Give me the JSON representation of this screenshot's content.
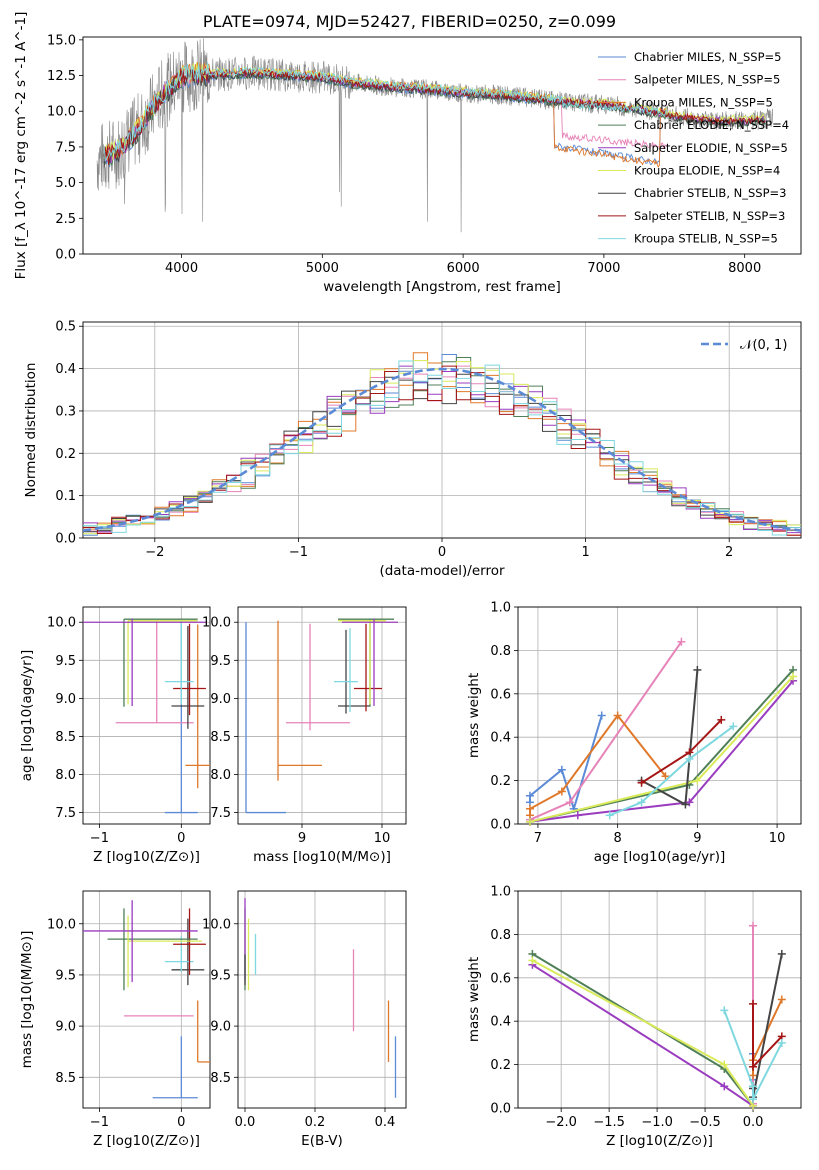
{
  "figure": {
    "title": "PLATE=0974, MJD=52427, FIBERID=0250, z=0.099"
  },
  "colors": {
    "chabrier_miles": "#5b8ad6",
    "salpeter_miles": "#e683b8",
    "kroupa_miles": "#e0782a",
    "chabrier_elodie": "#4f7f57",
    "salpeter_elodie": "#9a3cbf",
    "kroupa_elodie": "#d9ea5a",
    "chabrier_stelib": "#444444",
    "salpeter_stelib": "#a51515",
    "kroupa_stelib": "#7fd8df",
    "data_gray": "#888888",
    "normal_curve": "#5b8ad6"
  },
  "chart_data": [
    {
      "id": "spectrum",
      "type": "line",
      "xlabel": "wavelength [Angstrom, rest frame]",
      "ylabel": "Flux [f_λ 10^-17 erg cm^-2 s^-1 A^-1]",
      "xlim": [
        3300,
        8400
      ],
      "ylim": [
        0,
        15.2
      ],
      "xticks": [
        "4000",
        "5000",
        "6000",
        "7000",
        "8000"
      ],
      "yticks": [
        "0.0",
        "2.5",
        "5.0",
        "7.5",
        "10.0",
        "12.5",
        "15.0"
      ],
      "legend_position": "top-right",
      "legend": [
        "Chabrier MILES, N_SSP=5",
        "Salpeter MILES, N_SSP=5",
        "Kroupa MILES, N_SSP=5",
        "Chabrier ELODIE, N_SSP=4",
        "Salpeter ELODIE, N_SSP=5",
        "Kroupa ELODIE, N_SSP=4",
        "Chabrier STELIB, N_SSP=3",
        "Salpeter STELIB, N_SSP=3",
        "Kroupa STELIB, N_SSP=5"
      ],
      "continuum": {
        "x": [
          3400,
          3550,
          3700,
          3850,
          4000,
          4100,
          4300,
          4500,
          4800,
          5000,
          5200,
          5500,
          5800,
          6000,
          6300,
          6500,
          6600,
          6700,
          6800,
          7000,
          7200,
          7500,
          7700,
          8000,
          8200
        ],
        "y": [
          6.6,
          7.2,
          8.8,
          11.0,
          12.4,
          12.6,
          12.6,
          12.7,
          12.5,
          12.4,
          12.0,
          11.7,
          11.5,
          11.3,
          11.1,
          10.9,
          10.8,
          10.7,
          10.6,
          10.5,
          10.2,
          9.7,
          9.4,
          9.3,
          9.5
        ]
      },
      "model_tails": [
        {
          "series": "Kroupa STELIB",
          "start": 6700,
          "end": 7400,
          "y": [
            10.5,
            10.0
          ]
        },
        {
          "series": "Salpeter MILES",
          "start": 6700,
          "end": 7450,
          "y": [
            8.3,
            7.5
          ]
        },
        {
          "series": "Chabrier MILES",
          "start": 6650,
          "end": 7400,
          "y": [
            7.6,
            6.4
          ]
        },
        {
          "series": "Kroupa MILES",
          "start": 6650,
          "end": 7400,
          "y": [
            7.5,
            6.3
          ]
        }
      ]
    },
    {
      "id": "residuals",
      "type": "histogram",
      "xlabel": "(data-model)/error",
      "ylabel": "Normed distribution",
      "xlim": [
        -2.5,
        2.5
      ],
      "ylim": [
        0,
        0.51
      ],
      "xticks": [
        "−2",
        "−1",
        "0",
        "1",
        "2"
      ],
      "yticks": [
        "0.0",
        "0.1",
        "0.2",
        "0.3",
        "0.4",
        "0.5"
      ],
      "legend_position": "top-right",
      "legend": [
        "𝒩(0, 1)"
      ],
      "bin_width": 0.1,
      "bin_start": -2.5,
      "grid": true
    },
    {
      "id": "z-age",
      "type": "scatter",
      "xlabel": "Z [log10(Z/Z⊙)]",
      "ylabel": "age  [log10(age/yr)]",
      "xlim": [
        -1.2,
        0.35
      ],
      "ylim": [
        7.35,
        10.2
      ],
      "xticks": [
        "−1",
        "0"
      ],
      "yticks": [
        "7.5",
        "8.0",
        "8.5",
        "9.0",
        "9.5",
        "10.0"
      ],
      "points": [
        {
          "series": "Chabrier MILES",
          "x": 0,
          "y": 7.5,
          "xerr": [
            0.2,
            0.2
          ],
          "yerr": [
            0,
            2.5
          ]
        },
        {
          "series": "Kroupa MILES",
          "x": 0.2,
          "y": 8.12,
          "xerr": [
            0.15,
            0.15
          ],
          "yerr": [
            0.3,
            1.85
          ]
        },
        {
          "series": "Salpeter MILES",
          "x": -0.3,
          "y": 8.68,
          "xerr": [
            0.5,
            0.45
          ],
          "yerr": [
            0,
            1.35
          ]
        },
        {
          "series": "Chabrier STELIB",
          "x": 0.08,
          "y": 8.9,
          "xerr": [
            0.2,
            0.2
          ],
          "yerr": [
            0.3,
            1.05
          ]
        },
        {
          "series": "Salpeter STELIB",
          "x": 0.1,
          "y": 9.13,
          "xerr": [
            0.2,
            0.2
          ],
          "yerr": [
            0.35,
            0.85
          ]
        },
        {
          "series": "Kroupa STELIB",
          "x": 0.0,
          "y": 9.22,
          "xerr": [
            0.2,
            0.15
          ],
          "yerr": [
            0.3,
            0.8
          ]
        },
        {
          "series": "Chabrier ELODIE",
          "x": -0.7,
          "y": 10.04,
          "xerr": [
            0.0,
            0.9
          ],
          "yerr": [
            1.15,
            0
          ]
        },
        {
          "series": "Kroupa ELODIE",
          "x": -0.65,
          "y": 10.02,
          "xerr": [
            0.0,
            0.85
          ],
          "yerr": [
            1.1,
            0
          ]
        },
        {
          "series": "Salpeter ELODIE",
          "x": -0.6,
          "y": 10.0,
          "xerr": [
            0.6,
            0.9
          ],
          "yerr": [
            1.1,
            0.05
          ]
        }
      ]
    },
    {
      "id": "mass-age",
      "type": "scatter",
      "xlabel": "mass [log10(M/M⊙)]",
      "ylabel": "",
      "xlim": [
        8.2,
        10.3
      ],
      "ylim": [
        7.35,
        10.2
      ],
      "xticks": [
        "9",
        "10"
      ],
      "yticks": [
        "7.5",
        "8.0",
        "8.5",
        "9.0",
        "9.5",
        "10.0"
      ],
      "points": [
        {
          "series": "Chabrier MILES",
          "x": 8.3,
          "y": 7.5,
          "xerr": [
            0,
            0.5
          ],
          "yerr": [
            0,
            2.5
          ]
        },
        {
          "series": "Kroupa MILES",
          "x": 8.7,
          "y": 8.12,
          "xerr": [
            0,
            0.55
          ],
          "yerr": [
            0.2,
            1.9
          ]
        },
        {
          "series": "Salpeter MILES",
          "x": 9.1,
          "y": 8.68,
          "xerr": [
            0.3,
            0.5
          ],
          "yerr": [
            0.1,
            1.3
          ]
        },
        {
          "series": "Chabrier STELIB",
          "x": 9.55,
          "y": 8.9,
          "xerr": [
            0.1,
            0.3
          ],
          "yerr": [
            0.1,
            1.0
          ]
        },
        {
          "series": "Salpeter STELIB",
          "x": 9.8,
          "y": 9.13,
          "xerr": [
            0.15,
            0.2
          ],
          "yerr": [
            0.3,
            0.85
          ]
        },
        {
          "series": "Kroupa STELIB",
          "x": 9.6,
          "y": 9.22,
          "xerr": [
            0.2,
            0.1
          ],
          "yerr": [
            0.4,
            0.7
          ]
        },
        {
          "series": "Chabrier ELODIE",
          "x": 9.85,
          "y": 10.04,
          "xerr": [
            0.4,
            0.3
          ],
          "yerr": [
            1.15,
            0
          ]
        },
        {
          "series": "Kroupa ELODIE",
          "x": 9.85,
          "y": 10.02,
          "xerr": [
            0.4,
            0.2
          ],
          "yerr": [
            1.1,
            0
          ]
        },
        {
          "series": "Salpeter ELODIE",
          "x": 9.9,
          "y": 10.0,
          "xerr": [
            0.4,
            0.3
          ],
          "yerr": [
            1.1,
            0.05
          ]
        }
      ]
    },
    {
      "id": "age-massweight",
      "type": "line",
      "xlabel": "age  [log10(age/yr)]",
      "ylabel": "mass weight",
      "xlim": [
        6.75,
        10.3
      ],
      "ylim": [
        0,
        1.0
      ],
      "xticks": [
        "7",
        "8",
        "9",
        "10"
      ],
      "yticks": [
        "0.0",
        "0.2",
        "0.4",
        "0.6",
        "0.8",
        "1.0"
      ],
      "grid": true,
      "series": [
        {
          "name": "Chabrier MILES",
          "x": [
            6.9,
            6.9,
            7.3,
            7.45,
            7.8
          ],
          "y": [
            0.1,
            0.13,
            0.25,
            0.07,
            0.5
          ]
        },
        {
          "name": "Salpeter MILES",
          "x": [
            6.9,
            7.4,
            8.8
          ],
          "y": [
            0.02,
            0.1,
            0.84
          ]
        },
        {
          "name": "Kroupa MILES",
          "x": [
            6.9,
            6.9,
            7.3,
            8.0,
            8.6
          ],
          "y": [
            0.04,
            0.07,
            0.15,
            0.5,
            0.22
          ]
        },
        {
          "name": "Chabrier ELODIE",
          "x": [
            6.9,
            8.9,
            10.2
          ],
          "y": [
            0.01,
            0.18,
            0.71
          ]
        },
        {
          "name": "Salpeter ELODIE",
          "x": [
            6.9,
            7.5,
            8.9,
            10.2
          ],
          "y": [
            0.01,
            0.04,
            0.1,
            0.66
          ]
        },
        {
          "name": "Kroupa ELODIE",
          "x": [
            6.9,
            9.0,
            10.2
          ],
          "y": [
            0.01,
            0.2,
            0.68
          ]
        },
        {
          "name": "Chabrier STELIB",
          "x": [
            8.3,
            8.85,
            9.0
          ],
          "y": [
            0.2,
            0.09,
            0.71
          ]
        },
        {
          "name": "Salpeter STELIB",
          "x": [
            8.3,
            8.9,
            9.3
          ],
          "y": [
            0.19,
            0.33,
            0.48
          ]
        },
        {
          "name": "Kroupa STELIB",
          "x": [
            7.9,
            8.3,
            8.9,
            9.45
          ],
          "y": [
            0.04,
            0.1,
            0.3,
            0.45
          ]
        }
      ]
    },
    {
      "id": "z-mass",
      "type": "scatter",
      "xlabel": "Z [log10(Z/Z⊙)]",
      "ylabel": "mass [log10(M/M⊙)]",
      "xlim": [
        -1.2,
        0.35
      ],
      "ylim": [
        8.2,
        10.32
      ],
      "xticks": [
        "−1",
        "0"
      ],
      "yticks": [
        "8.5",
        "9.0",
        "9.5",
        "10.0"
      ],
      "points": [
        {
          "series": "Chabrier MILES",
          "x": 0,
          "y": 8.3,
          "xerr": [
            0.35,
            0.2
          ],
          "yerr": [
            0,
            0.6
          ]
        },
        {
          "series": "Kroupa MILES",
          "x": 0.2,
          "y": 8.65,
          "xerr": [
            0.0,
            0.15
          ],
          "yerr": [
            0,
            0.6
          ]
        },
        {
          "series": "Salpeter MILES",
          "x": -0.2,
          "y": 9.1,
          "xerr": [
            0.5,
            0.35
          ],
          "yerr": [
            0,
            0
          ]
        },
        {
          "series": "Chabrier STELIB",
          "x": 0.08,
          "y": 9.55,
          "xerr": [
            0.2,
            0.2
          ],
          "yerr": [
            0.15,
            0.5
          ]
        },
        {
          "series": "Kroupa STELIB",
          "x": 0.0,
          "y": 9.63,
          "xerr": [
            0.2,
            0.15
          ],
          "yerr": [
            0.1,
            0.25
          ]
        },
        {
          "series": "Salpeter STELIB",
          "x": 0.1,
          "y": 9.8,
          "xerr": [
            0.2,
            0.2
          ],
          "yerr": [
            0.3,
            0.35
          ]
        },
        {
          "series": "Chabrier ELODIE",
          "x": -0.7,
          "y": 9.85,
          "xerr": [
            0.2,
            0.9
          ],
          "yerr": [
            0.5,
            0.3
          ]
        },
        {
          "series": "Kroupa ELODIE",
          "x": -0.65,
          "y": 9.83,
          "xerr": [
            0.0,
            0.9
          ],
          "yerr": [
            0.45,
            0.25
          ]
        },
        {
          "series": "Salpeter ELODIE",
          "x": -0.6,
          "y": 9.93,
          "xerr": [
            0.6,
            0.8
          ],
          "yerr": [
            0.5,
            0.3
          ]
        }
      ]
    },
    {
      "id": "ebv-mass",
      "type": "scatter",
      "xlabel": "E(B-V)",
      "ylabel": "",
      "xlim": [
        -0.02,
        0.46
      ],
      "ylim": [
        8.2,
        10.32
      ],
      "xticks": [
        "0.0",
        "0.2",
        "0.4"
      ],
      "yticks": [
        "8.5",
        "9.0",
        "9.5",
        "10.0"
      ],
      "points": [
        {
          "series": "Chabrier MILES",
          "x": 0.43,
          "y": 8.6,
          "xerr": [
            0,
            0
          ],
          "yerr": [
            0.3,
            0.3
          ]
        },
        {
          "series": "Kroupa MILES",
          "x": 0.41,
          "y": 8.95,
          "xerr": [
            0,
            0
          ],
          "yerr": [
            0.3,
            0.3
          ]
        },
        {
          "series": "Salpeter MILES",
          "x": 0.31,
          "y": 9.35,
          "xerr": [
            0,
            0
          ],
          "yerr": [
            0.4,
            0.4
          ]
        },
        {
          "series": "Kroupa STELIB",
          "x": 0.03,
          "y": 9.7,
          "xerr": [
            0,
            0
          ],
          "yerr": [
            0.2,
            0.2
          ]
        },
        {
          "series": "Chabrier ELODIE",
          "x": 0.0,
          "y": 9.75,
          "xerr": [
            0,
            0
          ],
          "yerr": [
            0.4,
            0.4
          ]
        },
        {
          "series": "Salpeter ELODIE",
          "x": 0.0,
          "y": 9.85,
          "xerr": [
            0,
            0
          ],
          "yerr": [
            0.4,
            0.4
          ]
        },
        {
          "series": "Kroupa ELODIE",
          "x": 0.01,
          "y": 9.7,
          "xerr": [
            0,
            0
          ],
          "yerr": [
            0.35,
            0.35
          ]
        },
        {
          "series": "Chabrier STELIB",
          "x": 0.0,
          "y": 9.55,
          "xerr": [
            0,
            0
          ],
          "yerr": [
            0.15,
            0.15
          ]
        }
      ]
    },
    {
      "id": "z-massweight",
      "type": "line",
      "xlabel": "Z [log10(Z/Z⊙)]",
      "ylabel": "mass weight",
      "xlim": [
        -2.45,
        0.5
      ],
      "ylim": [
        0,
        1.0
      ],
      "xticks": [
        "−2.0",
        "−1.5",
        "−1.0",
        "−0.5",
        "0.0"
      ],
      "yticks": [
        "0.0",
        "0.2",
        "0.4",
        "0.6",
        "0.8",
        "1.0"
      ],
      "grid": true,
      "series": [
        {
          "name": "Chabrier MILES",
          "x": [
            0,
            0,
            0
          ],
          "y": [
            0.1,
            0.13,
            0.25
          ]
        },
        {
          "name": "Salpeter MILES",
          "x": [
            0,
            0
          ],
          "y": [
            0.02,
            0.84
          ]
        },
        {
          "name": "Kroupa MILES",
          "x": [
            0,
            0,
            0.3
          ],
          "y": [
            0.15,
            0.22,
            0.5
          ]
        },
        {
          "name": "Chabrier ELODIE",
          "x": [
            -2.3,
            -0.3,
            0
          ],
          "y": [
            0.71,
            0.18,
            0.01
          ]
        },
        {
          "name": "Salpeter ELODIE",
          "x": [
            -2.3,
            -0.3,
            0
          ],
          "y": [
            0.66,
            0.1,
            0.01
          ]
        },
        {
          "name": "Kroupa ELODIE",
          "x": [
            -2.3,
            -0.3,
            0
          ],
          "y": [
            0.68,
            0.2,
            0.01
          ]
        },
        {
          "name": "Chabrier STELIB",
          "x": [
            0.3,
            0,
            0
          ],
          "y": [
            0.71,
            0.05,
            0.09
          ]
        },
        {
          "name": "Salpeter STELIB",
          "x": [
            0,
            0,
            0.3
          ],
          "y": [
            0.48,
            0.19,
            0.33
          ]
        },
        {
          "name": "Kroupa STELIB",
          "x": [
            -0.3,
            0,
            0,
            0.3
          ],
          "y": [
            0.45,
            0.1,
            0.04,
            0.3
          ]
        }
      ]
    }
  ]
}
